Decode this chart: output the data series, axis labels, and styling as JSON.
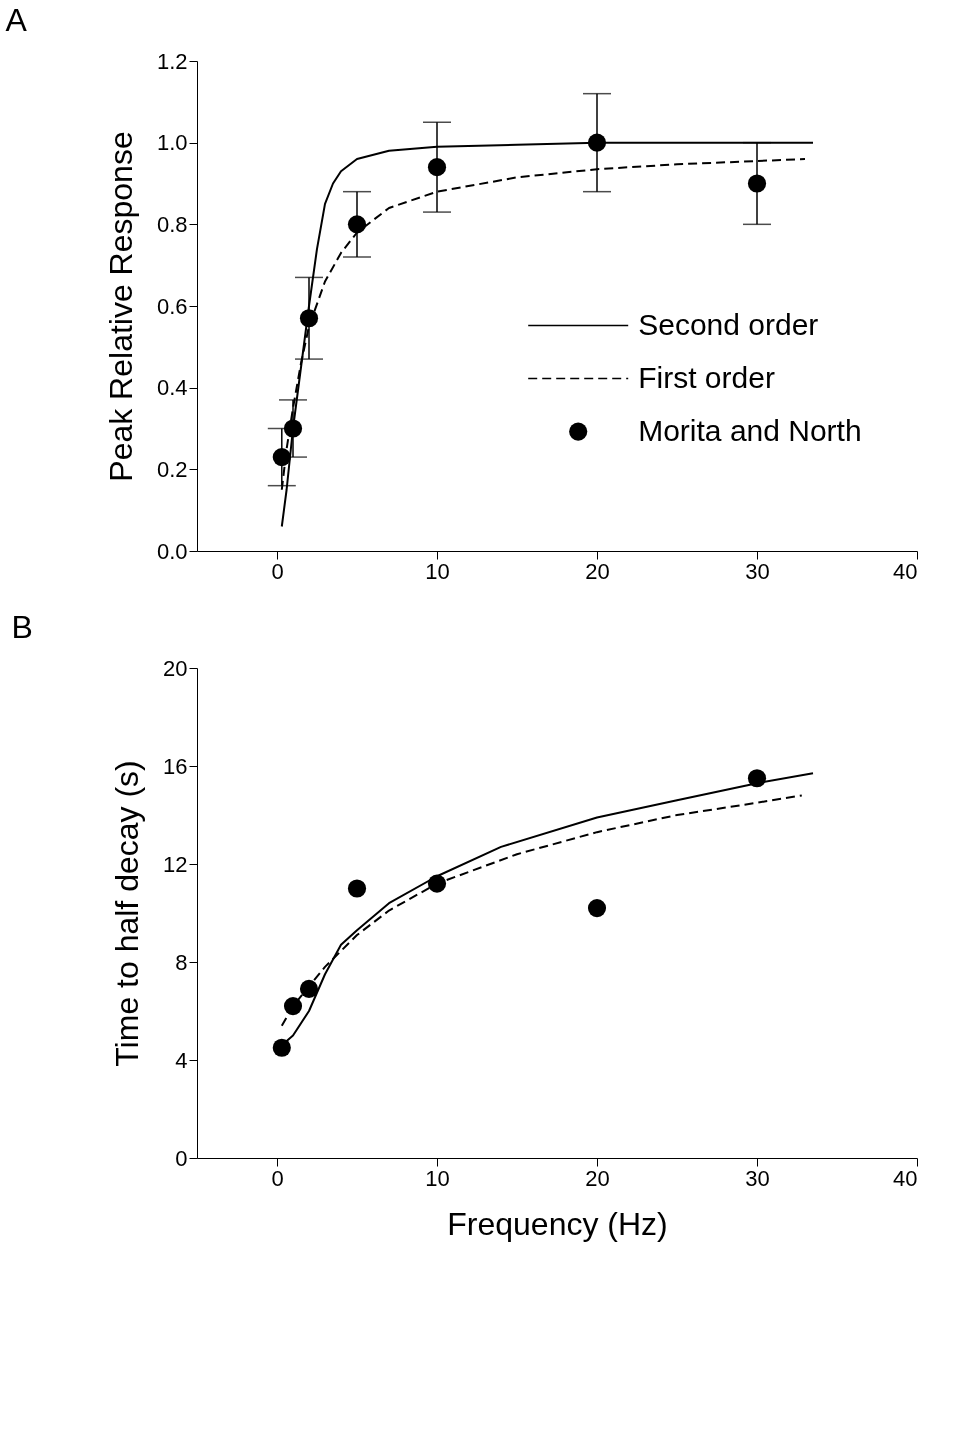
{
  "chart_data": [
    {
      "type": "line",
      "title": "A",
      "ylabel": "Peak Relative Response",
      "xlim": [
        -5,
        40
      ],
      "xticks": [
        0,
        10,
        20,
        30,
        40
      ],
      "ylim": [
        0,
        1.2
      ],
      "yticks": [
        {
          "value": 0,
          "label": "0.0"
        },
        {
          "value": 0.2,
          "label": "0.2"
        },
        {
          "value": 0.4,
          "label": "0.4"
        },
        {
          "value": 0.6,
          "label": "0.6"
        },
        {
          "value": 0.8,
          "label": "0.8"
        },
        {
          "value": 1,
          "label": "1.0"
        },
        {
          "value": 1.2,
          "label": "1.2"
        }
      ],
      "grid": false,
      "legend": "right",
      "series": [
        {
          "name": "Second order",
          "color": "#000000",
          "line_style": "solid",
          "marker": "none",
          "x": [
            0.3,
            0.6,
            1,
            1.5,
            2,
            2.5,
            3,
            3.5,
            4,
            5,
            7,
            10,
            15,
            20,
            25,
            30,
            33.5
          ],
          "values": [
            0.06,
            0.15,
            0.3,
            0.45,
            0.6,
            0.74,
            0.85,
            0.9,
            0.93,
            0.96,
            0.98,
            0.99,
            0.995,
            1.0,
            1.0,
            1.0,
            1.0
          ]
        },
        {
          "name": "First order",
          "color": "#000000",
          "line_style": "dashed",
          "marker": "none",
          "x": [
            0.3,
            0.6,
            1,
            1.5,
            2,
            3,
            4,
            5,
            7,
            10,
            15,
            20,
            25,
            30,
            33
          ],
          "values": [
            0.15,
            0.25,
            0.35,
            0.46,
            0.55,
            0.66,
            0.73,
            0.78,
            0.84,
            0.88,
            0.915,
            0.935,
            0.947,
            0.955,
            0.96
          ]
        },
        {
          "name": "Morita and North",
          "type": "scatter",
          "color": "#000000",
          "marker": "circle",
          "x": [
            0.3,
            1,
            2,
            5,
            10,
            20,
            30
          ],
          "values": [
            0.23,
            0.3,
            0.57,
            0.8,
            0.94,
            1.0,
            0.9
          ],
          "errors": [
            0.07,
            0.07,
            0.1,
            0.08,
            0.11,
            0.12,
            0.1
          ]
        }
      ]
    },
    {
      "type": "line",
      "title": "B",
      "xlabel": "Frequency (Hz)",
      "ylabel": "Time to half decay (s)",
      "xlim": [
        -5,
        40
      ],
      "xticks": [
        0,
        10,
        20,
        30,
        40
      ],
      "ylim": [
        0,
        20
      ],
      "yticks": [
        0,
        4,
        8,
        12,
        16,
        20
      ],
      "grid": false,
      "series": [
        {
          "color": "#000000",
          "line_style": "solid",
          "marker": "none",
          "x": [
            0.3,
            1,
            2,
            3,
            4,
            5,
            7,
            10,
            14,
            20,
            25,
            30,
            33.5
          ],
          "values": [
            4.6,
            5.0,
            6.0,
            7.5,
            8.7,
            9.3,
            10.4,
            11.5,
            12.7,
            13.9,
            14.6,
            15.3,
            15.7
          ]
        },
        {
          "color": "#000000",
          "line_style": "dashed",
          "marker": "none",
          "x": [
            0.3,
            1,
            2,
            3,
            5,
            7,
            10,
            15,
            20,
            25,
            30,
            32.8
          ],
          "values": [
            5.4,
            6.2,
            7.0,
            7.8,
            9.1,
            10.1,
            11.2,
            12.4,
            13.3,
            14.0,
            14.5,
            14.8
          ]
        },
        {
          "type": "scatter",
          "color": "#000000",
          "marker": "circle",
          "x": [
            0.3,
            1,
            2,
            5,
            10,
            20,
            30
          ],
          "values": [
            4.5,
            6.2,
            6.9,
            11.0,
            11.2,
            10.2,
            15.5
          ]
        }
      ]
    }
  ]
}
